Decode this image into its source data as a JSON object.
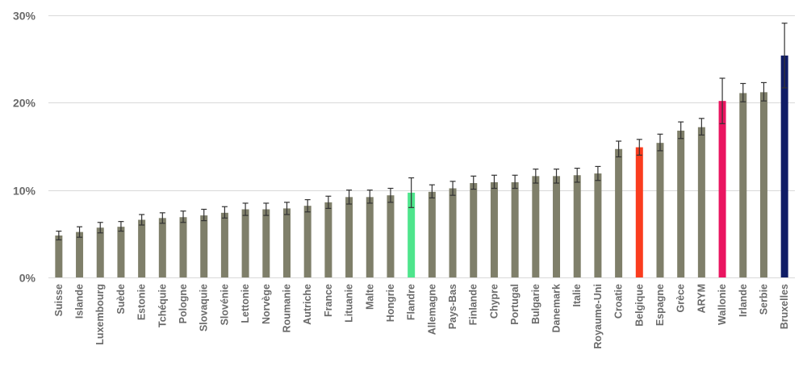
{
  "chart_data": {
    "type": "bar",
    "title": "",
    "xlabel": "",
    "ylabel": "",
    "ylim": [
      0,
      30
    ],
    "yticks": [
      0,
      10,
      20,
      30
    ],
    "ytick_labels": [
      "0%",
      "10%",
      "20%",
      "30%"
    ],
    "grid": "horizontal",
    "default_color": "#7f7f6a",
    "categories": [
      "Suisse",
      "Islande",
      "Luxembourg",
      "Suède",
      "Estonie",
      "Tchéquie",
      "Pologne",
      "Slovaquie",
      "Slovénie",
      "Lettonie",
      "Norvège",
      "Roumanie",
      "Autriche",
      "France",
      "Lituanie",
      "Malte",
      "Hongrie",
      "Flandre",
      "Allemagne",
      "Pays-Bas",
      "Finlande",
      "Chypre",
      "Portugal",
      "Bulgarie",
      "Danemark",
      "Italie",
      "Royaume-Uni",
      "Croatie",
      "Belgique",
      "Espagne",
      "Grèce",
      "ARYM",
      "Wallonie",
      "Irlande",
      "Serbie",
      "Bruxelles"
    ],
    "values": [
      4.8,
      5.2,
      5.7,
      5.8,
      6.6,
      6.8,
      6.9,
      7.1,
      7.4,
      7.8,
      7.8,
      7.9,
      8.2,
      8.6,
      9.2,
      9.2,
      9.4,
      9.7,
      9.8,
      10.2,
      10.8,
      10.9,
      10.9,
      11.6,
      11.6,
      11.7,
      11.9,
      14.7,
      14.9,
      15.4,
      16.8,
      17.2,
      20.2,
      21.1,
      21.2,
      25.4
    ],
    "error_low": [
      4.3,
      4.6,
      5.1,
      5.3,
      6.0,
      6.2,
      6.3,
      6.5,
      6.8,
      7.1,
      7.1,
      7.2,
      7.5,
      7.9,
      8.4,
      8.5,
      8.6,
      8.0,
      9.1,
      9.4,
      10.1,
      10.2,
      10.2,
      10.8,
      10.8,
      10.9,
      11.1,
      13.8,
      14.0,
      14.5,
      15.9,
      16.3,
      17.6,
      20.1,
      20.2,
      21.7
    ],
    "error_high": [
      5.3,
      5.8,
      6.3,
      6.4,
      7.2,
      7.4,
      7.6,
      7.8,
      8.1,
      8.5,
      8.5,
      8.6,
      8.9,
      9.3,
      10.0,
      10.0,
      10.2,
      11.4,
      10.6,
      11.0,
      11.6,
      11.7,
      11.7,
      12.4,
      12.4,
      12.5,
      12.7,
      15.6,
      15.8,
      16.4,
      17.8,
      18.2,
      22.8,
      22.2,
      22.3,
      29.1
    ],
    "highlight_colors": {
      "Flandre": "#4ee58c",
      "Belgique": "#fa3c1e",
      "Wallonie": "#ea1560",
      "Bruxelles": "#101d66"
    }
  }
}
